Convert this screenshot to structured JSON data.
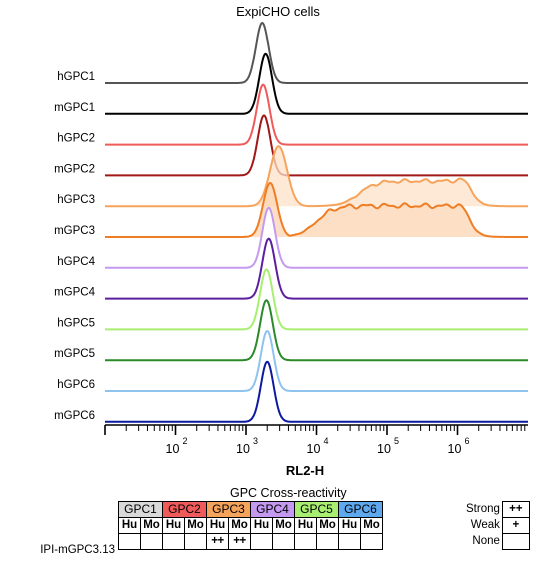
{
  "chart_data": {
    "type": "area",
    "title": "ExpiCHO cells",
    "xlabel": "RL2-H",
    "xscale": "log",
    "xlim": [
      10,
      10000000
    ],
    "xticks": [
      {
        "base": "10",
        "exp": "2",
        "value": 100
      },
      {
        "base": "10",
        "exp": "3",
        "value": 1000
      },
      {
        "base": "10",
        "exp": "4",
        "value": 10000
      },
      {
        "base": "10",
        "exp": "5",
        "value": 100000
      },
      {
        "base": "10",
        "exp": "6",
        "value": 1000000
      }
    ],
    "series": [
      {
        "name": "hGPC1",
        "color": "#555555",
        "peak": 1700,
        "width": 0.09,
        "height": 1.0
      },
      {
        "name": "mGPC1",
        "color": "#000000",
        "peak": 1900,
        "width": 0.09,
        "height": 1.0
      },
      {
        "name": "hGPC2",
        "color": "#ef5a5a",
        "peak": 1750,
        "width": 0.09,
        "height": 1.0
      },
      {
        "name": "mGPC2",
        "color": "#a01818",
        "peak": 1800,
        "width": 0.09,
        "height": 1.0
      },
      {
        "name": "hGPC3",
        "color": "#f6a35b",
        "fill": "#fde2c8",
        "peak": 2900,
        "width": 0.12,
        "height": 1.0,
        "plateau": {
          "from": 40000,
          "to": 1500000,
          "level": 0.42,
          "bump_at": 1500000
        }
      },
      {
        "name": "mGPC3",
        "color": "#ee7d24",
        "fill": "#fbd4b0",
        "peak": 2200,
        "width": 0.1,
        "height": 0.9,
        "plateau": {
          "from": 10000,
          "to": 1400000,
          "level": 0.52,
          "bump_at": 1400000
        }
      },
      {
        "name": "hGPC4",
        "color": "#c39aef",
        "peak": 2100,
        "width": 0.09,
        "height": 1.0
      },
      {
        "name": "mGPC4",
        "color": "#5b1fa0",
        "peak": 2100,
        "width": 0.09,
        "height": 1.0
      },
      {
        "name": "hGPC5",
        "color": "#a8ee70",
        "peak": 1950,
        "width": 0.09,
        "height": 1.0
      },
      {
        "name": "mGPC5",
        "color": "#2a8a2a",
        "peak": 1950,
        "width": 0.09,
        "height": 1.0
      },
      {
        "name": "hGPC6",
        "color": "#8ec3ef",
        "peak": 2000,
        "width": 0.09,
        "height": 1.0
      },
      {
        "name": "mGPC6",
        "color": "#0d1aa0",
        "peak": 2000,
        "width": 0.09,
        "height": 1.0
      }
    ]
  },
  "cross_reactivity": {
    "title": "GPC Cross-reactivity",
    "groups": [
      {
        "name": "GPC1",
        "color": "#d9d9d9"
      },
      {
        "name": "GPC2",
        "color": "#ef5a5a"
      },
      {
        "name": "GPC3",
        "color": "#f6a35b"
      },
      {
        "name": "GPC4",
        "color": "#c39aef"
      },
      {
        "name": "GPC5",
        "color": "#a8ee70"
      },
      {
        "name": "GPC6",
        "color": "#5ea8ee"
      }
    ],
    "subheaders": [
      "Hu",
      "Mo"
    ],
    "rows": [
      {
        "label": "IPI-mGPC3.13",
        "values": [
          "",
          "",
          "",
          "",
          "++",
          "++",
          "",
          "",
          "",
          "",
          "",
          ""
        ]
      }
    ],
    "legend": [
      {
        "label": "Strong",
        "symbol": "++"
      },
      {
        "label": "Weak",
        "symbol": "+"
      },
      {
        "label": "None",
        "symbol": ""
      }
    ]
  }
}
